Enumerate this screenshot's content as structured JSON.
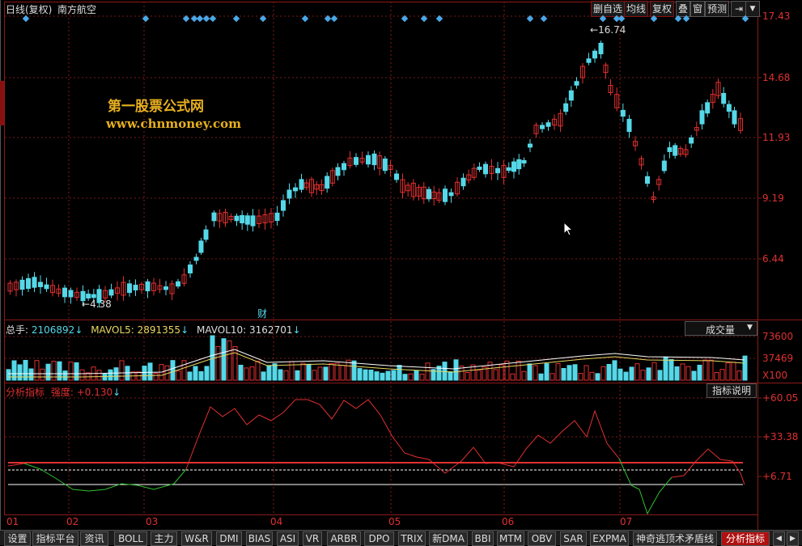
{
  "header": {
    "period": "日线(复权)",
    "stock_name": "南方航空"
  },
  "toolbar": {
    "delete_watch": "删自选",
    "ma_line": "均线",
    "restore_rights": "复权",
    "overlay": "叠",
    "window": "窗",
    "forecast": "预测"
  },
  "price_panel": {
    "ticks": [
      "17.43",
      "14.68",
      "11.93",
      "9.19",
      "6.44"
    ],
    "high_marker": "16.74",
    "low_marker": "4.38",
    "finance_marker": "财"
  },
  "watermark": {
    "title": "第一股票公式网",
    "url": "www.chnmoney.com"
  },
  "volume_panel": {
    "total_label": "总手: ",
    "total_value": "2106892",
    "mavol5_label": "MAVOL5: ",
    "mavol5_value": "2891355",
    "mavol10_label": "MAVOL10: ",
    "mavol10_value": "3162701",
    "selector": "成交量",
    "ticks": [
      "73600",
      "37469",
      "X100"
    ]
  },
  "indicator_panel": {
    "name": "分析指标",
    "strength_label": "强度: ",
    "strength_value": "+0.130",
    "explain_button": "指标说明",
    "ticks": [
      "+60.05",
      "+33.38",
      "+6.71"
    ]
  },
  "months": [
    "01",
    "02",
    "03",
    "04",
    "05",
    "06",
    "07"
  ],
  "tabs": [
    "设置",
    "指标平台",
    "资讯",
    "BOLL",
    "主力",
    "W&R",
    "DMI",
    "BIAS",
    "ASI",
    "VR",
    "ARBR",
    "DPO",
    "TRIX",
    "新DMA",
    "BBI",
    "MTM",
    "OBV",
    "SAR",
    "EXPMA",
    "神奇逃顶术矛盾线",
    "分析指标"
  ],
  "colors": {
    "up": "#e03030",
    "down": "#55d8e8",
    "marker": "#4aa8e8",
    "ma_white": "#ffffff",
    "ma_yellow": "#e8d860",
    "indicator_line": "#e03030",
    "indicator_low": "#30c030"
  }
}
